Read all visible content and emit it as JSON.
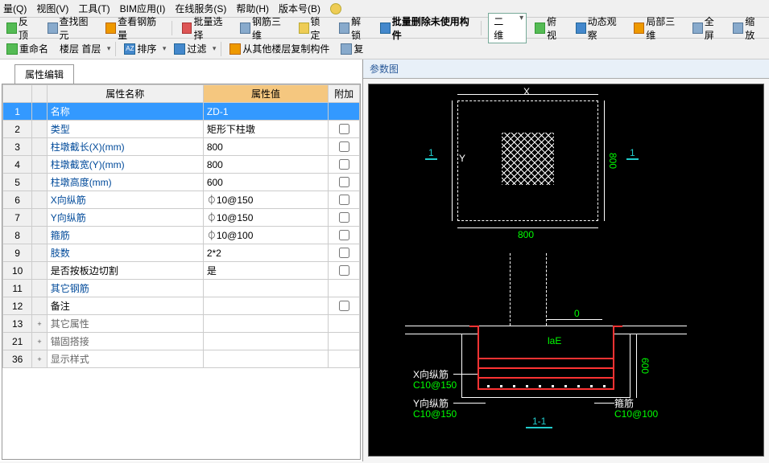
{
  "menu": {
    "items": [
      "量(Q)",
      "视图(V)",
      "工具(T)",
      "BIM应用(I)",
      "在线服务(S)",
      "帮助(H)",
      "版本号(B)"
    ]
  },
  "toolbar1": {
    "items": [
      {
        "label": "反顶"
      },
      {
        "label": "查找图元"
      },
      {
        "label": "查看钢筋量"
      },
      {
        "sep": true
      },
      {
        "label": "批量选择"
      },
      {
        "label": "钢筋三维"
      },
      {
        "label": "锁定"
      },
      {
        "label": "解锁"
      },
      {
        "label": "批量删除未使用构件",
        "bold": true
      },
      {
        "sep": true
      },
      {
        "dropdown": "二维"
      },
      {
        "label": "俯视"
      },
      {
        "label": "动态观察"
      },
      {
        "label": "局部三维"
      },
      {
        "label": "全屏"
      },
      {
        "label": "缩放"
      }
    ]
  },
  "toolbar2": {
    "items": [
      {
        "label": "重命名"
      },
      {
        "dd": "楼层 首层"
      },
      {
        "sep": true
      },
      {
        "dd": "排序",
        "icon": "az"
      },
      {
        "dd": "过滤",
        "icon": "funnel"
      },
      {
        "sep": true
      },
      {
        "label": "从其他楼层复制构件"
      },
      {
        "label": "复"
      }
    ]
  },
  "leftPanel": {
    "tabLabel": "属性编辑",
    "headers": {
      "name": "属性名称",
      "value": "属性值",
      "extra": "附加"
    },
    "rows": [
      {
        "num": "1",
        "name": "名称",
        "value": "ZD-1",
        "sel": true
      },
      {
        "num": "2",
        "name": "类型",
        "value": "矩形下柱墩",
        "chk": true
      },
      {
        "num": "3",
        "name": "柱墩截长(X)(mm)",
        "value": "800",
        "chk": true
      },
      {
        "num": "4",
        "name": "柱墩截宽(Y)(mm)",
        "value": "800",
        "chk": true
      },
      {
        "num": "5",
        "name": "柱墩高度(mm)",
        "value": "600",
        "chk": true
      },
      {
        "num": "6",
        "name": "X向纵筋",
        "value": "⏀10@150",
        "chk": true
      },
      {
        "num": "7",
        "name": "Y向纵筋",
        "value": "⏀10@150",
        "chk": true
      },
      {
        "num": "8",
        "name": "箍筋",
        "value": "⏀10@100",
        "chk": true
      },
      {
        "num": "9",
        "name": "肢数",
        "value": "2*2",
        "chk": true
      },
      {
        "num": "10",
        "name": "是否按板边切割",
        "value": "是",
        "chk": true,
        "black": true
      },
      {
        "num": "11",
        "name": "其它钢筋",
        "value": ""
      },
      {
        "num": "12",
        "name": "备注",
        "value": "",
        "chk": true,
        "black": true
      },
      {
        "num": "13",
        "name": "其它属性",
        "value": "",
        "exp": "+",
        "gray": true
      },
      {
        "num": "21",
        "name": "锚固搭接",
        "value": "",
        "exp": "+",
        "gray": true
      },
      {
        "num": "36",
        "name": "显示样式",
        "value": "",
        "exp": "+",
        "gray": true
      }
    ]
  },
  "rightPanel": {
    "title": "参数图",
    "diagram": {
      "plan": {
        "dimX": "X",
        "dimY": "Y",
        "dim800a": "800",
        "dim800b": "800",
        "section": "1",
        "section2": "1"
      },
      "section": {
        "zero": "0",
        "lae": "laE",
        "xlabel": "X向纵筋",
        "xspec": "C10@150",
        "ylabel": "Y向纵筋",
        "yspec": "C10@150",
        "stirrup": "箍筋",
        "stirrupspec": "C10@100",
        "h600": "600",
        "cut": "1-1"
      }
    }
  }
}
